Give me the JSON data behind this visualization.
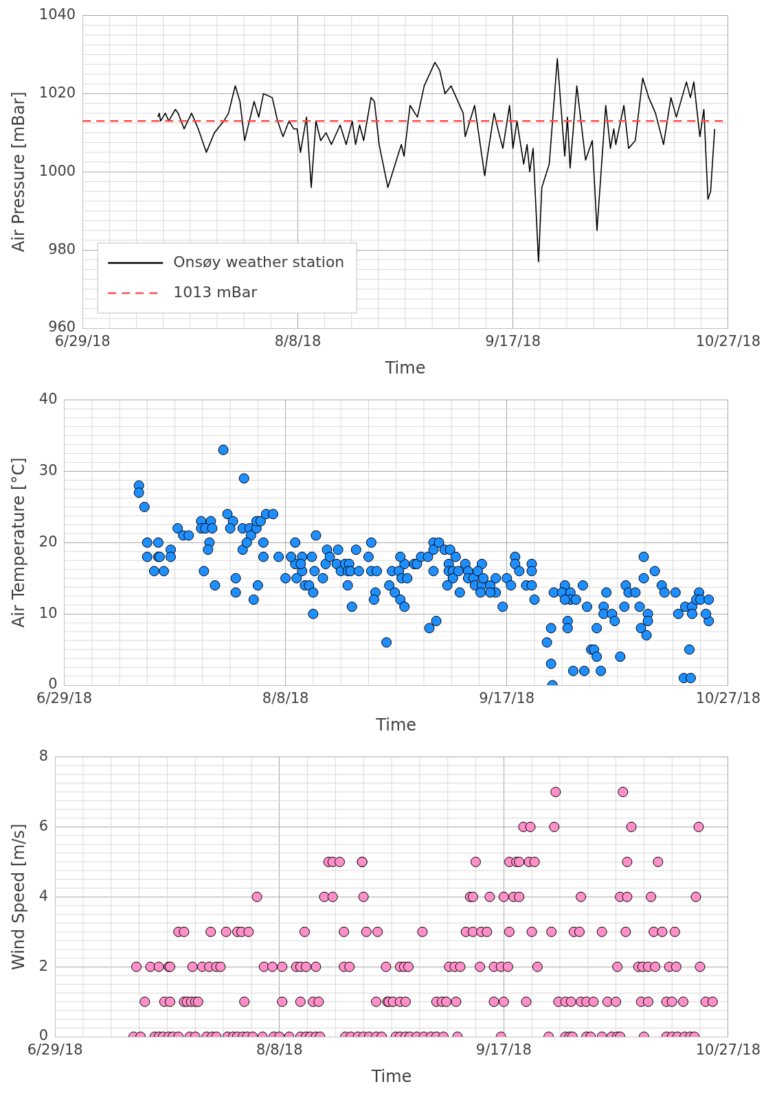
{
  "chart_data": [
    {
      "type": "line",
      "xlabel": "Time",
      "ylabel": "Air Pressure [mBar]",
      "xlim": [
        "2018-06-29",
        "2018-10-27"
      ],
      "xticks": [
        {
          "value": "2018-06-29",
          "label": "6/29/18"
        },
        {
          "value": "2018-08-08",
          "label": "8/8/18"
        },
        {
          "value": "2018-09-17",
          "label": "9/17/18"
        },
        {
          "value": "2018-10-27",
          "label": "10/27/18"
        }
      ],
      "ylim": [
        960,
        1040
      ],
      "yticks": [
        960,
        980,
        1000,
        1020,
        1040
      ],
      "grid": true,
      "legend": "bottom left",
      "marker": "none",
      "line_style": "solid",
      "ref_lines": [
        {
          "axis": "y",
          "value": 1013,
          "label": "1013 mBar",
          "color": "#ff4a4a",
          "line_style": "dashed"
        }
      ],
      "series": [
        {
          "name": "Onsøy weather station",
          "color": "#000000",
          "x": [
            "2018-07-13",
            "2018-07-13T06:00",
            "2018-07-13T12:00",
            "2018-07-14T09:00",
            "2018-07-15",
            "2018-07-16T06:00",
            "2018-07-16T18:00",
            "2018-07-17T21:00",
            "2018-07-19T06:00",
            "2018-07-20T12:00",
            "2018-07-22",
            "2018-07-23T12:00",
            "2018-07-25T06:00",
            "2018-07-26T03:00",
            "2018-07-27T09:00",
            "2018-07-28T06:00",
            "2018-07-29T03:00",
            "2018-07-30T21:00",
            "2018-07-31T18:00",
            "2018-08-01T15:00",
            "2018-08-03T06:00",
            "2018-08-04T06:00",
            "2018-08-05T06:00",
            "2018-08-06T09:00",
            "2018-08-07T06:00",
            "2018-08-07T21:00",
            "2018-08-08T12:00",
            "2018-08-09T15:00",
            "2018-08-10T12:00",
            "2018-08-11T09:00",
            "2018-08-12T06:00",
            "2018-08-13T06:00",
            "2018-08-14T06:00",
            "2018-08-15T21:00",
            "2018-08-17",
            "2018-08-18T03:00",
            "2018-08-18T18:00",
            "2018-08-19T12:00",
            "2018-08-20T06:00",
            "2018-08-21T15:00",
            "2018-08-22T06:00",
            "2018-08-23T03:00",
            "2018-08-24T18:00",
            "2018-08-27T06:00",
            "2018-08-27T18:00",
            "2018-08-28T21:00",
            "2018-08-30T06:00",
            "2018-08-31T12:00",
            "2018-09-02T12:00",
            "2018-09-03T09:00",
            "2018-09-04T09:00",
            "2018-09-05T12:00",
            "2018-09-07T18:00",
            "2018-09-08T03:00",
            "2018-09-09T21:00",
            "2018-09-10T12:00",
            "2018-09-11T18:00",
            "2018-09-12T06:00",
            "2018-09-13T12:00",
            "2018-09-14T09:00",
            "2018-09-15T03:00",
            "2018-09-16T09:00",
            "2018-09-17",
            "2018-09-17T18:00",
            "2018-09-19",
            "2018-09-19T15:00",
            "2018-09-20T03:00",
            "2018-09-20T18:00",
            "2018-09-21T18:00",
            "2018-09-22T09:00",
            "2018-09-23T18:00",
            "2018-09-25T06:00",
            "2018-09-26T15:00",
            "2018-09-27T03:00",
            "2018-09-27T15:00",
            "2018-09-28T21:00",
            "2018-09-30T12:00",
            "2018-10-01T18:00",
            "2018-10-02T15:00",
            "2018-10-04T06:00",
            "2018-10-05T03:00",
            "2018-10-05T18:00",
            "2018-10-06T03:00",
            "2018-10-07T15:00",
            "2018-10-08T12:00",
            "2018-10-09T18:00",
            "2018-10-11T03:00",
            "2018-10-12T06:00",
            "2018-10-13T12:00",
            "2018-10-15",
            "2018-10-16T09:00",
            "2018-10-17T09:00",
            "2018-10-19T06:00",
            "2018-10-20",
            "2018-10-20T15:00",
            "2018-10-21T18:00",
            "2018-10-22T12:00",
            "2018-10-23T06:00",
            "2018-10-23T18:00",
            "2018-10-24T12:00"
          ],
          "values": [
            1014,
            1015,
            1013,
            1015,
            1013,
            1016,
            1015,
            1011,
            1015,
            1011,
            1005,
            1010,
            1013,
            1015,
            1022,
            1018,
            1008,
            1018,
            1014,
            1020,
            1019,
            1013,
            1009,
            1013,
            1011,
            1011,
            1005,
            1014,
            996,
            1013,
            1008,
            1010,
            1007,
            1012,
            1007,
            1013,
            1007,
            1012,
            1008,
            1019,
            1018,
            1007,
            996,
            1007,
            1004,
            1017,
            1014,
            1022,
            1028,
            1026,
            1020,
            1022,
            1015,
            1009,
            1017,
            1011,
            999,
            1004,
            1015,
            1010,
            1006,
            1017,
            1006,
            1013,
            1002,
            1007,
            1000,
            1006,
            977,
            996,
            1002,
            1029,
            1004,
            1014,
            1001,
            1022,
            1003,
            1008,
            985,
            1017,
            1006,
            1011,
            1007,
            1017,
            1006,
            1008,
            1024,
            1019,
            1015,
            1007,
            1019,
            1014,
            1023,
            1019,
            1023,
            1009,
            1016,
            993,
            995,
            1011
          ]
        }
      ]
    },
    {
      "type": "scatter",
      "xlabel": "Time",
      "ylabel": "Air Temperature [°C]",
      "xlim": [
        "2018-06-29",
        "2018-10-27"
      ],
      "xticks": [
        {
          "value": "2018-06-29",
          "label": "6/29/18"
        },
        {
          "value": "2018-08-08",
          "label": "8/8/18"
        },
        {
          "value": "2018-09-17",
          "label": "9/17/18"
        },
        {
          "value": "2018-10-27",
          "label": "10/27/18"
        }
      ],
      "ylim": [
        0,
        40
      ],
      "yticks": [
        0,
        10,
        20,
        30,
        40
      ],
      "grid": true,
      "marker": "circle",
      "series": [
        {
          "color": "#1e8fff",
          "x": [
            "2018-07-12T12:00",
            "2018-07-12T12:00",
            "2018-07-13T12:00",
            "2018-07-14",
            "2018-07-14",
            "2018-07-16",
            "2018-07-16",
            "2018-07-16T06:00",
            "2018-07-15T06:00",
            "2018-07-17",
            "2018-07-18T06:00",
            "2018-07-18T06:00",
            "2018-07-19T12:00",
            "2018-07-20T12:00",
            "2018-07-21T12:00",
            "2018-07-23T18:00",
            "2018-07-23T18:00",
            "2018-07-25T12:00",
            "2018-07-24T12:00",
            "2018-07-25T18:00",
            "2018-07-25T06:00",
            "2018-07-25",
            "2018-07-24T06:00",
            "2018-07-26T06:00",
            "2018-07-27T18:00",
            "2018-07-28T12:00",
            "2018-07-29T12:00",
            "2018-07-29",
            "2018-07-30",
            "2018-07-30",
            "2018-07-31T12:00",
            "2018-07-31T06:00",
            "2018-07-31T06:00",
            "2018-08-01T12:00",
            "2018-08-01T18:00",
            "2018-08-02T18:00",
            "2018-08-02T18:00",
            "2018-08-03T12:00",
            "2018-08-04T12:00",
            "2018-08-05T18:00",
            "2018-08-01",
            "2018-08-02T06:00",
            "2018-08-03",
            "2018-08-04",
            "2018-08-04",
            "2018-08-06T18:00",
            "2018-08-08",
            "2018-08-09T18:00",
            "2018-08-09T18:00",
            "2018-08-09",
            "2018-08-11",
            "2018-08-11",
            "2018-08-10T18:00",
            "2018-08-10",
            "2018-08-11T12:00",
            "2018-08-12T06:00",
            "2018-08-13",
            "2018-08-13",
            "2018-08-12T18:00",
            "2018-08-13T06:00",
            "2018-08-13T12:00",
            "2018-08-14T18:00",
            "2018-08-15T12:00",
            "2018-08-15T06:00",
            "2018-08-16",
            "2018-08-17T12:00",
            "2018-08-17T06:00",
            "2018-08-18",
            "2018-08-18T18:00",
            "2018-08-19T12:00",
            "2018-08-19T06:00",
            "2018-08-19T06:00",
            "2018-08-19T18:00",
            "2018-08-20",
            "2018-08-20T18:00",
            "2018-08-21T06:00",
            "2018-08-23T12:00",
            "2018-08-23",
            "2018-08-23T12:00",
            "2018-08-24T12:00",
            "2018-08-24T06:00",
            "2018-08-24",
            "2018-08-26T06:00",
            "2018-08-26T18:00",
            "2018-08-27T18:00",
            "2018-08-28T18:00",
            "2018-08-29T12:00",
            "2018-08-29T12:00",
            "2018-08-27T06:00",
            "2018-08-28T12:00",
            "2018-08-28T18:00",
            "2018-08-29",
            "2018-08-30",
            "2018-08-31T06:00",
            "2018-08-31T18:00",
            "2018-09-01T12:00",
            "2018-09-02T18:00",
            "2018-09-03T18:00",
            "2018-09-03T18:00",
            "2018-09-03T18:00",
            "2018-09-04T18:00",
            "2018-09-05T18:00",
            "2018-09-06T18:00",
            "2018-09-07T18:00",
            "2018-09-06T12:00",
            "2018-09-06T12:00",
            "2018-09-07T06:00",
            "2018-09-07T06:00",
            "2018-09-08T06:00",
            "2018-09-06T06:00",
            "2018-09-08T12:00",
            "2018-09-03",
            "2018-09-04T06:00",
            "2018-09-09T12:00",
            "2018-09-10",
            "2018-09-10",
            "2018-09-11",
            "2018-09-11T06:00",
            "2018-09-12T12:00",
            "2018-09-12T12:00",
            "2018-09-11T18:00",
            "2018-09-12T18:00",
            "2018-09-12T06:00",
            "2018-09-14",
            "2018-09-15",
            "2018-09-15",
            "2018-09-14",
            "2018-09-16T06:00",
            "2018-09-17",
            "2018-09-17T18:00",
            "2018-09-18T12:00",
            "2018-09-18T12:00",
            "2018-09-19T06:00",
            "2018-09-20T12:00",
            "2018-09-21T12:00",
            "2018-09-21T12:00",
            "2018-09-21T12:00",
            "2018-09-22",
            "2018-09-25T12:00",
            "2018-09-24T06:00",
            "2018-09-25",
            "2018-09-25",
            "2018-09-25T06:00",
            "2018-09-27T12:00",
            "2018-09-27",
            "2018-09-28T12:00",
            "2018-09-28T12:00",
            "2018-09-27T12:00",
            "2018-09-29T12:00",
            "2018-09-28",
            "2018-09-28",
            "2018-09-30T18:00",
            "2018-10-01T12:00",
            "2018-09-29",
            "2018-10-01",
            "2018-10-04",
            "2018-10-02T06:00",
            "2018-10-02T18:00",
            "2018-10-03T06:00",
            "2018-10-03T06:00",
            "2018-10-04T12:00",
            "2018-10-04T12:00",
            "2018-10-06",
            "2018-10-06T12:00",
            "2018-10-05",
            "2018-10-07T12:00",
            "2018-10-08T12:00",
            "2018-10-09",
            "2018-10-10T06:00",
            "2018-10-08T06:00",
            "2018-10-11T18:00",
            "2018-10-11T18:00",
            "2018-10-11",
            "2018-10-12T12:00",
            "2018-10-12T12:00",
            "2018-10-11T06:00",
            "2018-10-12T06:00",
            "2018-10-13T18:00",
            "2018-10-15",
            "2018-10-15T12:00",
            "2018-10-17T12:00",
            "2018-10-18",
            "2018-10-19T06:00",
            "2018-10-20T12:00",
            "2018-10-20T12:00",
            "2018-10-20",
            "2018-10-19",
            "2018-10-20T06:00",
            "2018-10-21T18:00",
            "2018-10-21T06:00",
            "2018-10-22",
            "2018-10-23T12:00",
            "2018-10-23T12:00",
            "2018-10-23"
          ],
          "values": [
            28,
            27,
            25,
            20,
            18,
            20,
            18,
            18,
            16,
            16,
            19,
            18,
            22,
            21,
            21,
            23,
            22,
            23,
            22,
            22,
            20,
            19,
            16,
            14,
            33,
            24,
            23,
            22,
            15,
            13,
            29,
            22,
            19,
            22,
            21,
            22,
            23,
            23,
            24,
            24,
            20,
            12,
            14,
            20,
            18,
            18,
            15,
            20,
            17,
            18,
            18,
            16,
            17,
            15,
            14,
            14,
            13,
            10,
            18,
            16,
            21,
            15,
            19,
            17,
            18,
            19,
            17,
            16,
            17,
            17,
            16,
            14,
            16,
            11,
            19,
            16,
            20,
            18,
            16,
            16,
            13,
            12,
            6,
            14,
            13,
            12,
            11,
            17,
            16,
            16,
            18,
            15,
            15,
            17,
            17,
            18,
            18,
            20,
            19,
            16,
            20,
            19,
            19,
            18,
            17,
            16,
            16,
            15,
            16,
            14,
            13,
            8,
            9,
            17,
            16,
            15,
            15,
            14,
            17,
            14,
            16,
            15,
            13,
            14,
            15,
            13,
            13,
            11,
            15,
            14,
            18,
            17,
            16,
            14,
            17,
            16,
            14,
            12,
            13,
            6,
            8,
            3,
            0,
            14,
            13,
            13,
            12,
            12,
            12,
            9,
            8,
            14,
            11,
            2,
            2,
            2,
            5,
            5,
            4,
            8,
            11,
            10,
            10,
            9,
            13,
            4,
            14,
            13,
            13,
            11,
            18,
            15,
            11,
            10,
            9,
            8,
            7,
            16,
            14,
            13,
            13,
            10,
            11,
            11,
            10,
            5,
            1,
            1,
            13,
            12,
            12,
            12,
            9,
            10
          ]
        }
      ]
    },
    {
      "type": "scatter",
      "xlabel": "Time",
      "ylabel": "Wind Speed [m/s]",
      "xlim": [
        "2018-06-29",
        "2018-10-27"
      ],
      "xticks": [
        {
          "value": "2018-06-29",
          "label": "6/29/18"
        },
        {
          "value": "2018-08-08",
          "label": "8/8/18"
        },
        {
          "value": "2018-09-17",
          "label": "9/17/18"
        },
        {
          "value": "2018-10-27",
          "label": "10/27/18"
        }
      ],
      "ylim": [
        0,
        8
      ],
      "yticks": [
        0,
        2,
        4,
        6,
        8
      ],
      "grid": true,
      "marker": "circle",
      "series": [
        {
          "color": "#ff8fc8",
          "x": [
            "2018-07-13",
            "2018-07-14T06:00",
            "2018-07-16T18:00",
            "2018-07-17T12:00",
            "2018-07-18T06:00",
            "2018-07-19T06:00",
            "2018-07-20",
            "2018-07-21",
            "2018-07-23",
            "2018-07-24",
            "2018-07-26",
            "2018-07-27",
            "2018-07-27T18:00",
            "2018-07-29T18:00",
            "2018-07-30T18:00",
            "2018-07-31T12:00",
            "2018-08-01T12:00",
            "2018-08-02T06:00",
            "2018-08-03T06:00",
            "2018-08-05",
            "2018-08-07",
            "2018-08-08",
            "2018-08-09T18:00",
            "2018-08-11T18:00",
            "2018-08-12T18:00",
            "2018-08-13T12:00",
            "2018-08-14T12:00",
            "2018-08-15T06:00",
            "2018-08-19T18:00",
            "2018-08-20T18:00",
            "2018-08-22",
            "2018-08-23",
            "2018-08-24",
            "2018-08-25T06:00",
            "2018-08-26T06:00",
            "2018-08-28T18:00",
            "2018-08-29T12:00",
            "2018-08-30T12:00",
            "2018-08-31T06:00",
            "2018-09-01T12:00",
            "2018-09-02T18:00",
            "2018-09-04",
            "2018-09-05",
            "2018-09-06T06:00",
            "2018-09-08T18:00",
            "2018-09-16T12:00",
            "2018-09-25",
            "2018-09-28",
            "2018-09-28T18:00",
            "2018-09-29T06:00",
            "2018-10-01T18:00",
            "2018-10-02T12:00",
            "2018-10-04T12:00",
            "2018-10-06T06:00",
            "2018-10-07T06:00",
            "2018-10-07T18:00",
            "2018-10-12",
            "2018-10-16",
            "2018-10-17",
            "2018-10-18",
            "2018-10-19T06:00",
            "2018-10-20T06:00",
            "2018-10-21",
            "2018-07-15",
            "2018-07-18T12:00",
            "2018-07-19T12:00",
            "2018-07-22",
            "2018-07-22T12:00",
            "2018-07-23T06:00",
            "2018-07-24",
            "2018-07-24T12:00",
            "2018-08-01T18:00",
            "2018-08-08T12:00",
            "2018-08-11T18:00",
            "2018-08-14",
            "2018-08-15",
            "2018-08-25T06:00",
            "2018-08-27T06:00",
            "2018-08-27T12:00",
            "2018-08-28T06:00",
            "2018-08-29T12:00",
            "2018-08-30T12:00",
            "2018-09-05",
            "2018-09-06",
            "2018-09-06T18:00",
            "2018-09-08T12:00",
            "2018-09-15T06:00",
            "2018-09-17",
            "2018-09-21",
            "2018-09-26T18:00",
            "2018-09-28",
            "2018-09-29",
            "2018-09-30T18:00",
            "2018-10-01T18:00",
            "2018-10-03",
            "2018-10-05T12:00",
            "2018-10-07",
            "2018-10-11T12:00",
            "2018-10-12T18:00",
            "2018-10-16",
            "2018-10-17",
            "2018-10-19",
            "2018-10-23",
            "2018-10-24T06:00",
            "2018-07-13T12:00",
            "2018-07-16",
            "2018-07-17T12:00",
            "2018-07-19T06:00",
            "2018-07-19T12:00",
            "2018-07-23T12:00",
            "2018-07-25T06:00",
            "2018-07-26T12:00",
            "2018-07-27T18:00",
            "2018-07-28T12:00",
            "2018-08-05T06:00",
            "2018-08-06T18:00",
            "2018-08-08T12:00",
            "2018-08-11",
            "2018-08-11T18:00",
            "2018-08-12T18:00",
            "2018-08-14T12:00",
            "2018-08-19T12:00",
            "2018-08-20T12:00",
            "2018-08-27",
            "2018-08-29T12:00",
            "2018-08-30T06:00",
            "2018-08-31",
            "2018-09-07T06:00",
            "2018-09-08T06:00",
            "2018-09-09T06:00",
            "2018-09-12T18:00",
            "2018-09-15T06:00",
            "2018-09-16T12:00",
            "2018-09-17T18:00",
            "2018-09-23",
            "2018-10-07T06:00",
            "2018-10-11",
            "2018-10-11T18:00",
            "2018-10-12T18:00",
            "2018-10-14",
            "2018-10-16T12:00",
            "2018-10-17T18:00",
            "2018-10-22",
            "2018-07-21",
            "2018-07-22",
            "2018-07-26T18:00",
            "2018-07-29T12:00",
            "2018-07-31T12:00",
            "2018-08-01T06:00",
            "2018-08-02T12:00",
            "2018-08-12T12:00",
            "2018-08-19T12:00",
            "2018-08-23T12:00",
            "2018-08-25T12:00",
            "2018-09-02T12:00",
            "2018-09-10T06:00",
            "2018-09-11T12:00",
            "2018-09-13",
            "2018-09-14",
            "2018-09-18",
            "2018-09-22",
            "2018-09-25T12:00",
            "2018-09-29T12:00",
            "2018-09-30T12:00",
            "2018-10-04T12:00",
            "2018-10-08T18:00",
            "2018-10-13T18:00",
            "2018-10-15T06:00",
            "2018-10-17T12:00",
            "2018-08-04",
            "2018-08-16",
            "2018-08-17T12:00",
            "2018-08-23",
            "2018-09-11",
            "2018-09-11T12:00",
            "2018-09-14T12:00",
            "2018-09-17",
            "2018-09-18T18:00",
            "2018-09-19T18:00",
            "2018-09-30T18:00",
            "2018-10-07T18:00",
            "2018-10-09",
            "2018-10-13T06:00",
            "2018-10-21T06:00",
            "2018-08-16T18:00",
            "2018-08-17T12:00",
            "2018-08-18T18:00",
            "2018-08-22T18:00",
            "2018-08-22T18:00",
            "2018-09-12",
            "2018-09-18",
            "2018-09-19T06:00",
            "2018-09-19T18:00",
            "2018-09-21T12:00",
            "2018-09-22T12:00",
            "2018-10-09",
            "2018-10-14T12:00",
            "2018-09-20T12:00",
            "2018-09-21T18:00",
            "2018-09-26",
            "2018-10-09T18:00",
            "2018-10-21T18:00",
            "2018-09-26T06:00",
            "2018-10-08T06:00"
          ],
          "values": [
            0,
            0,
            0,
            0,
            0,
            0,
            0,
            0,
            0,
            0,
            0,
            0,
            0,
            0,
            0,
            0,
            0,
            0,
            0,
            0,
            0,
            0,
            0,
            0,
            0,
            0,
            0,
            0,
            0,
            0,
            0,
            0,
            0,
            0,
            0,
            0,
            0,
            0,
            0,
            0,
            0,
            0,
            0,
            0,
            0,
            0,
            0,
            0,
            0,
            0,
            0,
            0,
            0,
            0,
            0,
            0,
            0,
            0,
            0,
            0,
            0,
            0,
            0,
            1,
            1,
            1,
            1,
            1,
            1,
            1,
            1,
            1,
            1,
            1,
            1,
            1,
            1,
            1,
            1,
            1,
            1,
            1,
            1,
            1,
            1,
            1,
            1,
            1,
            1,
            1,
            1,
            1,
            1,
            1,
            1,
            1,
            1,
            1,
            1,
            1,
            1,
            1,
            1,
            1,
            2,
            2,
            2,
            2,
            2,
            2,
            2,
            2,
            2,
            2,
            2,
            2,
            2,
            2,
            2,
            2,
            2,
            2,
            2,
            2,
            2,
            2,
            2,
            2,
            2,
            2,
            2,
            2,
            2,
            2,
            2,
            2,
            2,
            2,
            2,
            2,
            2,
            2,
            2,
            3,
            3,
            3,
            3,
            3,
            3,
            3,
            3,
            3,
            3,
            3,
            3,
            3,
            3,
            3,
            3,
            3,
            3,
            3,
            3,
            3,
            3,
            3,
            3,
            3,
            3,
            4,
            4,
            4,
            4,
            4,
            4,
            4,
            4,
            4,
            4,
            4,
            4,
            4,
            4,
            4,
            5,
            5,
            5,
            5,
            5,
            5,
            5,
            5,
            5,
            5,
            5,
            5,
            5,
            6,
            6,
            6,
            6,
            6,
            7,
            7
          ]
        }
      ]
    }
  ]
}
